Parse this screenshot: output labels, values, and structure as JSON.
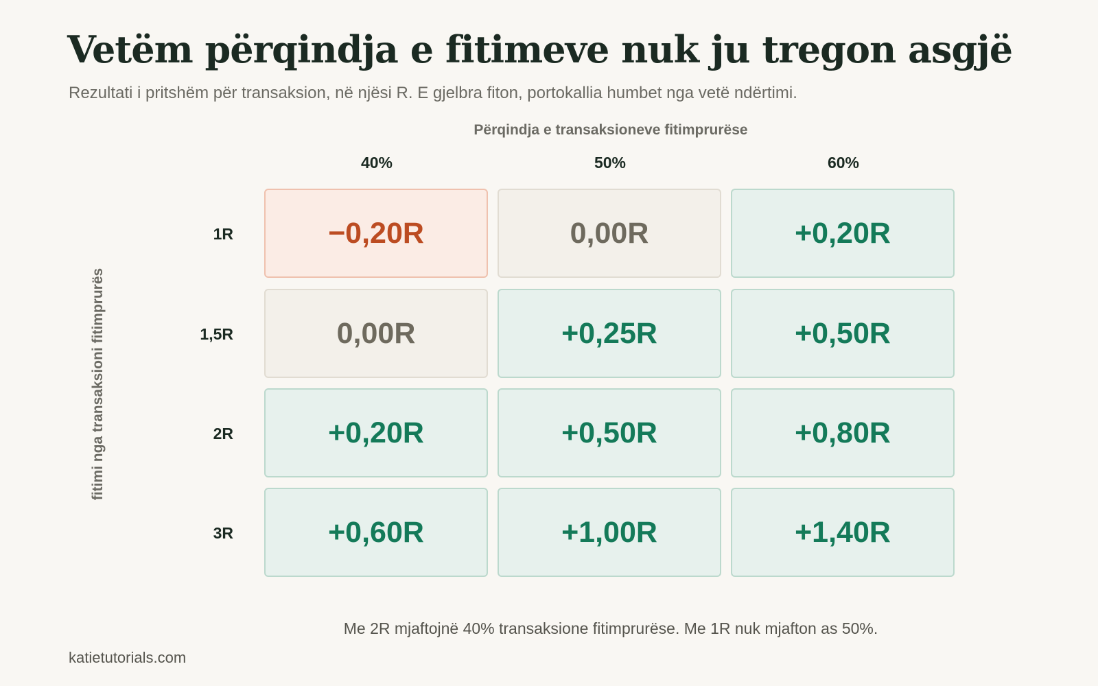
{
  "title": "Vetëm përqindja e fitimeve nuk ju tregon asgjë",
  "subtitle": "Rezultati i pritshëm për transaksion, në njësi R. E gjelbra fiton, portokallia humbet nga vetë ndërtimi.",
  "chart_data": {
    "type": "heatmap",
    "column_axis_label": "Përqindja e transaksioneve fitimprurëse",
    "row_axis_label": "fitimi nga transaksioni fitimprurës",
    "columns": [
      "40%",
      "50%",
      "60%"
    ],
    "rows": [
      "1R",
      "1,5R",
      "2R",
      "3R"
    ],
    "values": [
      [
        -0.2,
        0.0,
        0.2
      ],
      [
        0.0,
        0.25,
        0.5
      ],
      [
        0.2,
        0.5,
        0.8
      ],
      [
        0.6,
        1.0,
        1.4
      ]
    ],
    "value_labels": [
      [
        "−0,20R",
        "0,00R",
        "+0,20R"
      ],
      [
        "0,00R",
        "+0,25R",
        "+0,50R"
      ],
      [
        "+0,20R",
        "+0,50R",
        "+0,80R"
      ],
      [
        "+0,60R",
        "+1,00R",
        "+1,40R"
      ]
    ],
    "colors": {
      "positive": "#147a59",
      "negative": "#bc4c22",
      "neutral": "#6e6a5e"
    }
  },
  "takeaway": "Me 2R mjaftojnë 40% transaksione fitimprurëse. Me 1R nuk mjafton as 50%.",
  "footer": "katietutorials.com"
}
